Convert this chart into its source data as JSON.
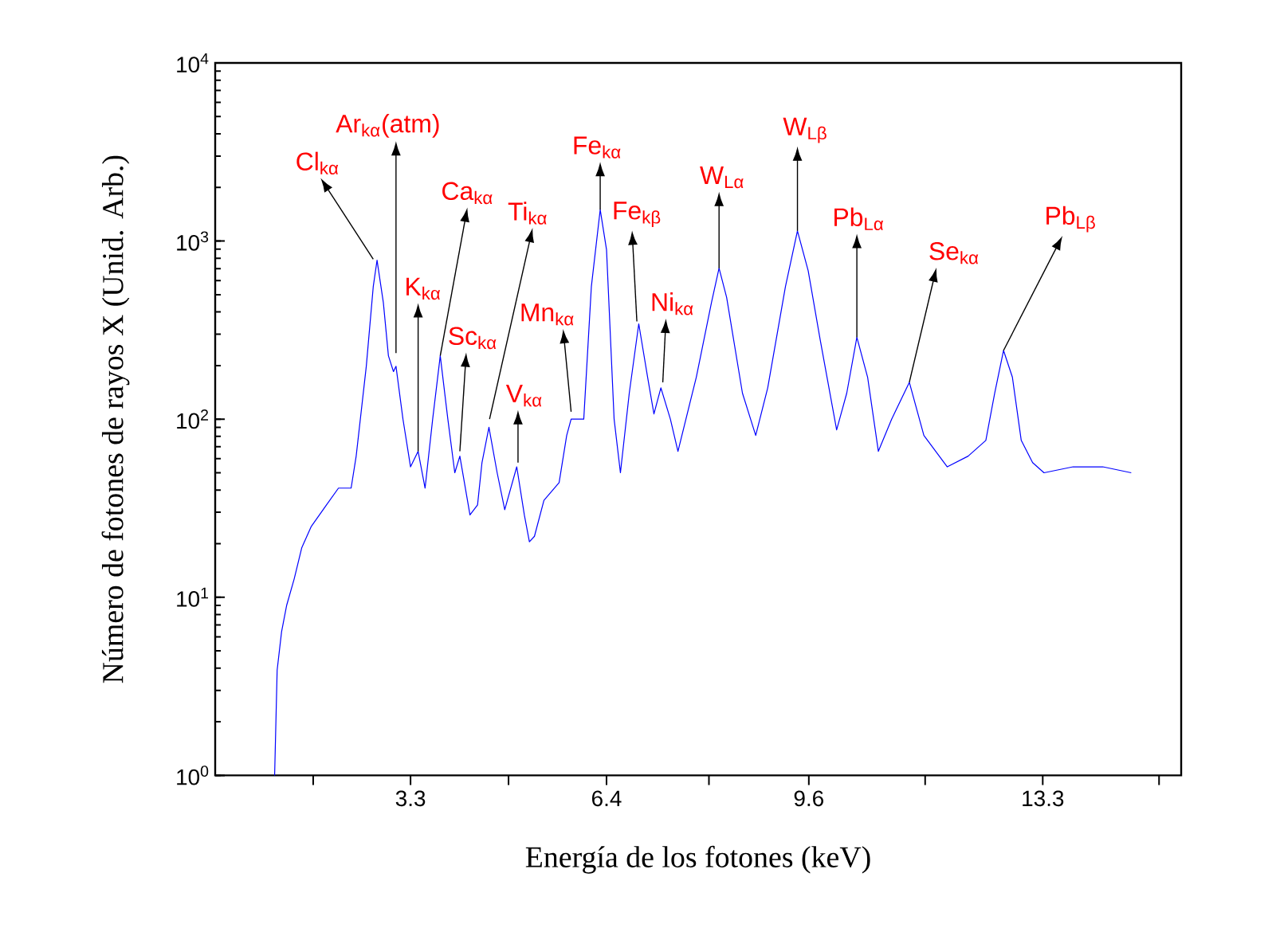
{
  "chart_data": {
    "type": "line",
    "xlabel": "Energía de los fotones (keV)",
    "ylabel": "Número de fotones de rayos X (Unid. Arb.)",
    "log": "y",
    "xlim": [
      0.21,
      15.49
    ],
    "ylim": [
      1,
      10000
    ],
    "xticks": [
      {
        "value": 1.76,
        "label": null
      },
      3.3,
      {
        "value": 4.85,
        "label": null
      },
      6.4,
      {
        "value": 8.02,
        "label": null
      },
      9.6,
      {
        "value": 11.44,
        "label": null
      },
      13.3,
      {
        "value": 15.14,
        "label": null
      }
    ],
    "yticks": [
      {
        "value": 1,
        "label": "10$^{0}$"
      },
      {
        "value": 10,
        "label": "10$^{1}$"
      },
      {
        "value": 100,
        "label": "10$^{2}$"
      },
      {
        "value": 1000,
        "label": "10$^{3}$"
      },
      {
        "value": 10000,
        "label": "10$^{4}$"
      }
    ],
    "series": [
      {
        "color": "#0000ff",
        "x": [
          1.15,
          1.19,
          1.26,
          1.34,
          1.46,
          1.58,
          1.73,
          1.97,
          2.16,
          2.36,
          2.44,
          2.6,
          2.71,
          2.77,
          2.87,
          2.95,
          3.03,
          3.07,
          3.18,
          3.3,
          3.42,
          3.53,
          3.65,
          3.77,
          3.89,
          4.0,
          4.08,
          4.24,
          4.36,
          4.43,
          4.54,
          4.67,
          4.79,
          4.98,
          5.1,
          5.18,
          5.26,
          5.41,
          5.65,
          5.77,
          5.84,
          6.04,
          6.16,
          6.3,
          6.4,
          6.52,
          6.62,
          6.76,
          6.91,
          7.05,
          7.15,
          7.26,
          7.41,
          7.53,
          7.82,
          8.06,
          8.18,
          8.3,
          8.55,
          8.76,
          8.95,
          9.23,
          9.42,
          9.59,
          9.78,
          10.04,
          10.2,
          10.36,
          10.53,
          10.7,
          10.91,
          11.19,
          11.42,
          11.79,
          12.12,
          12.4,
          12.54,
          12.68,
          12.82,
          12.96,
          13.14,
          13.32,
          13.78,
          14.25,
          14.7
        ],
        "values": [
          1,
          3.9,
          6.4,
          9,
          12.7,
          19,
          25,
          33,
          41,
          41,
          62,
          198,
          554,
          780,
          451,
          227,
          185,
          198,
          100,
          54,
          66,
          41,
          100,
          227,
          100,
          50,
          62,
          29,
          33,
          57,
          90,
          50,
          31,
          54,
          29,
          20.5,
          22,
          35,
          44,
          81,
          100,
          100,
          554,
          1500,
          895,
          100,
          50,
          140,
          343,
          172,
          107,
          150,
          100,
          66,
          172,
          451,
          704,
          482,
          140,
          81,
          150,
          554,
          1140,
          681,
          279,
          87,
          140,
          288,
          172,
          66,
          100,
          161,
          81,
          54,
          62,
          76,
          140,
          243,
          172,
          76,
          57,
          50,
          54,
          54,
          50
        ]
      }
    ],
    "annotations": [
      {
        "text": "Cl$_{kα}$",
        "x": 2.71,
        "y": 790
      },
      {
        "text": "Ar$_{kα}$(atm)",
        "x": 3.07,
        "y": 235
      },
      {
        "text": "K$_{kα}$",
        "x": 3.42,
        "y": 66
      },
      {
        "text": "Ca$_{kα}$",
        "x": 3.77,
        "y": 227
      },
      {
        "text": "Sc$_{kα}$",
        "x": 4.08,
        "y": 66
      },
      {
        "text": "Ti$_{kα}$",
        "x": 4.55,
        "y": 100
      },
      {
        "text": "V$_{kα}$",
        "x": 5.0,
        "y": 57
      },
      {
        "text": "Mn$_{kα}$",
        "x": 5.84,
        "y": 110
      },
      {
        "text": "Fe$_{kα}$",
        "x": 6.3,
        "y": 1500
      },
      {
        "text": "Fe$_{kβ}$",
        "x": 6.88,
        "y": 354
      },
      {
        "text": "Ni$_{kα}$",
        "x": 7.29,
        "y": 161
      },
      {
        "text": "W$_{Lα}$",
        "x": 8.18,
        "y": 704
      },
      {
        "text": "W$_{Lβ}$",
        "x": 9.42,
        "y": 1140
      },
      {
        "text": "Pb$_{Lα}$",
        "x": 10.36,
        "y": 288
      },
      {
        "text": "Se$_{kα}$",
        "x": 11.19,
        "y": 161
      },
      {
        "text": "Pb$_{Lβ}$",
        "x": 12.68,
        "y": 243
      }
    ]
  }
}
